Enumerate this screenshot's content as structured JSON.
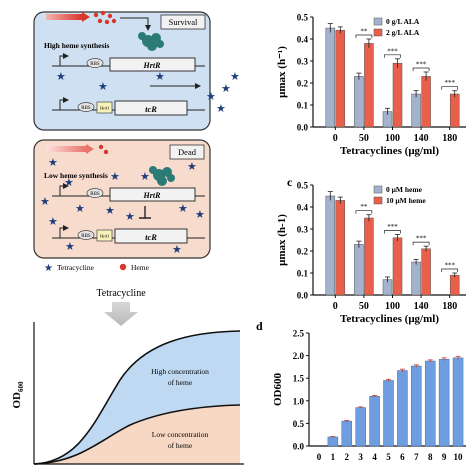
{
  "schematic": {
    "survival_label": "Survival",
    "dead_label": "Dead",
    "high_heme": "High heme synthesis",
    "low_heme": "Low heme synthesis",
    "rbs": "RBS",
    "hrto": "HrtO",
    "hrtr": "HrtR",
    "tcr": "tcR",
    "legend_tetracycline": "Tetracycline",
    "legend_heme": "Heme",
    "arrow_label": "Tetracycline",
    "growth_ylabel": "OD",
    "growth_ylabel_sub": "600",
    "high_conc": "High concentration of heme",
    "low_conc": "Low concentration of heme"
  },
  "chart_data": [
    {
      "type": "bar",
      "panel": "b",
      "categories": [
        "0",
        "50",
        "100",
        "140",
        "180"
      ],
      "series": [
        {
          "name": "0 g/L ALA",
          "values": [
            0.45,
            0.23,
            0.07,
            0.15,
            0
          ],
          "errors": [
            0.02,
            0.015,
            0.015,
            0.015,
            0
          ]
        },
        {
          "name": "2 g/L ALA",
          "values": [
            0.44,
            0.38,
            0.29,
            0.23,
            0.15
          ],
          "errors": [
            0.015,
            0.02,
            0.02,
            0.02,
            0.015
          ]
        }
      ],
      "annotations": [
        "**",
        "***",
        "***",
        "***"
      ],
      "ylabel": "μmax (h⁻¹)",
      "xlabel": "Tetracyclines (μg/ml)",
      "ylim": [
        0,
        0.5
      ],
      "yticks": [
        "0.0",
        "0.1",
        "0.2",
        "0.3",
        "0.4",
        "0.5"
      ],
      "colors": [
        "#a3b3cc",
        "#e8604c"
      ]
    },
    {
      "type": "bar",
      "panel": "c",
      "categories": [
        "0",
        "50",
        "100",
        "140",
        "180"
      ],
      "series": [
        {
          "name": "0 μM heme",
          "values": [
            0.45,
            0.23,
            0.07,
            0.15,
            0
          ],
          "errors": [
            0.02,
            0.015,
            0.012,
            0.012,
            0
          ]
        },
        {
          "name": "10 μM heme",
          "values": [
            0.43,
            0.35,
            0.26,
            0.21,
            0.09
          ],
          "errors": [
            0.015,
            0.015,
            0.015,
            0.012,
            0.01
          ]
        }
      ],
      "annotations": [
        "**",
        "***",
        "***",
        "***"
      ],
      "ylabel": "μmax (h-1)",
      "xlabel": "Tetracyclines (μg/ml)",
      "ylim": [
        0,
        0.5
      ],
      "yticks": [
        "0.0",
        "0.1",
        "0.2",
        "0.3",
        "0.4",
        "0.5"
      ],
      "colors": [
        "#a3b3cc",
        "#e8604c"
      ]
    },
    {
      "type": "bar",
      "panel": "d",
      "categories": [
        "0",
        "1",
        "2",
        "3",
        "4",
        "5",
        "6",
        "7",
        "8",
        "9",
        "10"
      ],
      "values": [
        0,
        0.2,
        0.55,
        0.85,
        1.1,
        1.45,
        1.67,
        1.77,
        1.88,
        1.92,
        1.95
      ],
      "errors": [
        0,
        0.01,
        0.015,
        0.015,
        0.02,
        0.025,
        0.03,
        0.025,
        0.025,
        0.03,
        0.035
      ],
      "ylabel": "OD600",
      "ylim": [
        0,
        2.5
      ],
      "yticks": [
        "0.0",
        "0.5",
        "1.0",
        "1.5",
        "2.0",
        "2.5"
      ],
      "colors": [
        "#6f9ee0"
      ]
    }
  ],
  "panel_letters": {
    "c": "c",
    "d": "d"
  }
}
